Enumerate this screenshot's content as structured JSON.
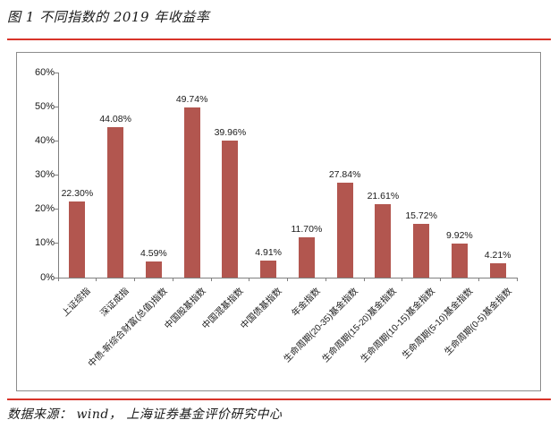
{
  "figure_title": "图 1 不同指数的 2019 年收益率",
  "footer": {
    "source_text": "数据来源：  wind， 上海证券基金评价研究中心"
  },
  "colors": {
    "bar": "#b2564f",
    "accent_line": "#d8342a",
    "frame_border": "#8c8c8c",
    "axis_line": "#7f7f7f"
  },
  "chart_data": {
    "type": "bar",
    "title": "图 1 不同指数的 2019 年收益率",
    "categories": [
      "上证综指",
      "深证成指",
      "中债-新综合财富(总值)指数",
      "中国股基指数",
      "中国混基指数",
      "中国债基指数",
      "年金指数",
      "生命周期(20-35)基金指数",
      "生命周期(15-20)基金指数",
      "生命周期(10-15)基金指数",
      "生命周期(5-10)基金指数",
      "生命周期(0-5)基金指数"
    ],
    "values": [
      22.3,
      44.08,
      4.59,
      49.74,
      39.96,
      4.91,
      11.7,
      27.84,
      21.61,
      15.72,
      9.92,
      4.21
    ],
    "value_labels": [
      "22.30%",
      "44.08%",
      "4.59%",
      "49.74%",
      "39.96%",
      "4.91%",
      "11.70%",
      "27.84%",
      "21.61%",
      "15.72%",
      "9.92%",
      "4.21%"
    ],
    "y_tick_labels": [
      "0%",
      "10%",
      "20%",
      "30%",
      "40%",
      "50%",
      "60%"
    ],
    "xlabel": "",
    "ylabel": "",
    "ylim": [
      0,
      60
    ],
    "grid": false,
    "legend": "none",
    "bar_color": "#b2564f",
    "x_label_rotation_deg": 45
  }
}
